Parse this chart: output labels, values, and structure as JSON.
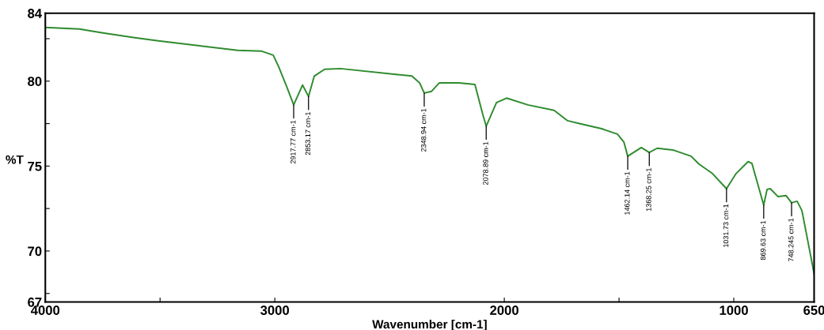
{
  "chart_data": {
    "type": "line",
    "xlabel": "Wavenumber [cm-1]",
    "ylabel": "%T",
    "xlim": [
      4000,
      650
    ],
    "ylim": [
      67,
      84
    ],
    "xticks": [
      4000,
      {
        "value": 3500,
        "label": null
      },
      3000,
      2000,
      {
        "value": 1500,
        "label": null
      },
      1000,
      650
    ],
    "yticks": [
      67,
      {
        "value": 67.5,
        "label": null
      },
      70,
      {
        "value": 72.5,
        "label": null
      },
      75,
      {
        "value": 77.5,
        "label": null
      },
      80,
      {
        "value": 82.5,
        "label": null
      },
      84
    ],
    "grid": false,
    "legend": false,
    "marker": "none",
    "line_style": "solid",
    "series": [
      {
        "color": "#2e8b2e",
        "x": [
          4000,
          3852,
          3748,
          3610,
          3507,
          3334,
          3162,
          3059,
          3007,
          2983,
          2948,
          2917.77,
          2879,
          2853.17,
          2828,
          2783,
          2714,
          2472,
          2403,
          2369,
          2348.94,
          2317,
          2283,
          2197,
          2128,
          2093,
          2078.89,
          2034,
          1990,
          1897,
          1783,
          1724,
          1669,
          1576,
          1507,
          1479,
          1462.14,
          1403,
          1368.25,
          1334,
          1266,
          1186,
          1152,
          1093,
          1031.73,
          990,
          938,
          921,
          869.63,
          855,
          841,
          807,
          772,
          748.245,
          724,
          703,
          679,
          650
        ],
        "values": [
          83.16,
          83.07,
          82.84,
          82.56,
          82.37,
          82.09,
          81.81,
          81.77,
          81.53,
          80.84,
          79.67,
          78.6,
          79.77,
          79.1,
          80.3,
          80.7,
          80.74,
          80.4,
          80.3,
          79.9,
          79.3,
          79.4,
          79.9,
          79.9,
          79.8,
          78.0,
          77.35,
          78.74,
          79.0,
          78.6,
          78.28,
          77.67,
          77.49,
          77.2,
          76.88,
          76.42,
          75.58,
          76.09,
          75.8,
          76.05,
          75.95,
          75.58,
          75.12,
          74.56,
          73.67,
          74.56,
          75.26,
          75.16,
          72.7,
          73.63,
          73.67,
          73.2,
          73.26,
          72.84,
          72.93,
          72.37,
          70.7,
          68.65
        ]
      }
    ],
    "annotations": [
      {
        "text": "2917.77 cm-1",
        "x": 2917.77,
        "y": 78.6
      },
      {
        "text": "2853.17 cm-1",
        "x": 2853.17,
        "y": 79.1
      },
      {
        "text": "2348.94 cm-1",
        "x": 2348.94,
        "y": 79.3
      },
      {
        "text": "2078.89 cm-1",
        "x": 2078.89,
        "y": 77.35
      },
      {
        "text": "1462.14 cm-1",
        "x": 1462.14,
        "y": 75.58
      },
      {
        "text": "1368.25 cm-1",
        "x": 1368.25,
        "y": 75.8
      },
      {
        "text": "1031.73 cm-1",
        "x": 1031.73,
        "y": 73.67
      },
      {
        "text": "869.63 cm-1",
        "x": 869.63,
        "y": 72.7
      },
      {
        "text": "748.245 cm-1",
        "x": 748.245,
        "y": 72.84
      }
    ]
  }
}
